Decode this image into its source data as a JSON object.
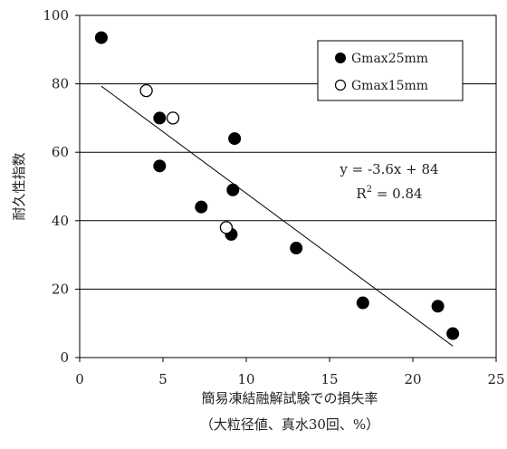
{
  "chart_data": {
    "type": "scatter",
    "xlabel": "簡易凍結融解試験での損失率",
    "xlabel_sub": "（大粒径値、真水30回、%）",
    "ylabel": "耐久性指数",
    "xlim": [
      0,
      25
    ],
    "ylim": [
      0,
      100
    ],
    "x_ticks": [
      "0",
      "5",
      "10",
      "15",
      "20",
      "25"
    ],
    "y_ticks": [
      "0",
      "20",
      "40",
      "60",
      "80",
      "100"
    ],
    "grid_y": true,
    "legend_position": "top-right",
    "series": [
      {
        "name": "Gmax25mm",
        "marker": "filled-circle",
        "color": "#000000",
        "points": [
          {
            "x": 1.3,
            "y": 93.5
          },
          {
            "x": 4.8,
            "y": 70
          },
          {
            "x": 4.8,
            "y": 56
          },
          {
            "x": 7.3,
            "y": 44
          },
          {
            "x": 9.2,
            "y": 49
          },
          {
            "x": 9.3,
            "y": 64
          },
          {
            "x": 9.1,
            "y": 36
          },
          {
            "x": 13.0,
            "y": 32
          },
          {
            "x": 17.0,
            "y": 16
          },
          {
            "x": 21.5,
            "y": 15
          },
          {
            "x": 22.4,
            "y": 7
          }
        ]
      },
      {
        "name": "Gmax15mm",
        "marker": "open-circle",
        "color": "#000000",
        "points": [
          {
            "x": 4.0,
            "y": 78
          },
          {
            "x": 5.6,
            "y": 70
          },
          {
            "x": 8.8,
            "y": 38
          }
        ]
      }
    ],
    "trendline": {
      "slope": -3.6,
      "intercept": 84,
      "x_range": [
        1.3,
        22.4
      ],
      "equation": "y = -3.6x + 84",
      "r2_label": "R",
      "r2_sup": "2",
      "r2_value": " = 0.84"
    }
  }
}
